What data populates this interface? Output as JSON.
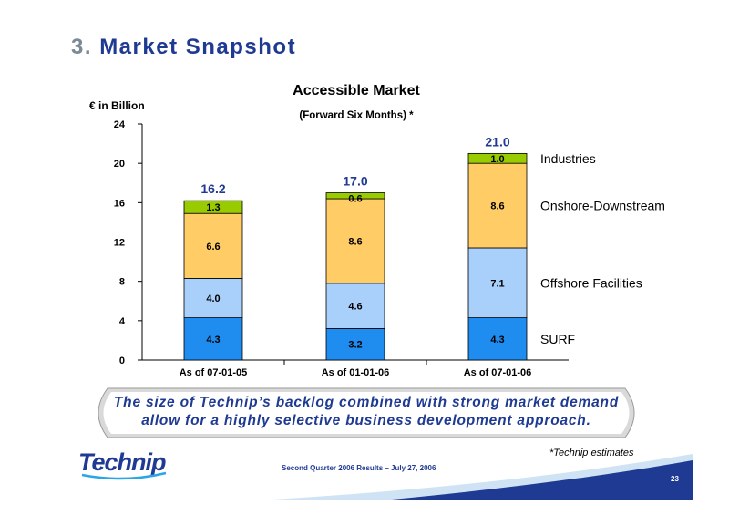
{
  "page": {
    "title_number": "3.",
    "title_text": "Market Snapshot",
    "callout_line1": "The size of Technip’s backlog combined with strong market demand",
    "callout_line2": "allow for a highly selective business development approach.",
    "footnote": "*Technip estimates",
    "footer": "Second Quarter 2006 Results – July 27, 2006",
    "page_number": "23",
    "logo_text": "Technip"
  },
  "colors": {
    "SURF": "#1f8df0",
    "Offshore Facilities": "#a9d0fa",
    "Onshore-Downstream": "#ffcc66",
    "Industries": "#99cc00",
    "title": "#1f3a93",
    "total_label": "#1f3a93"
  },
  "chart_data": {
    "type": "bar",
    "stacked": true,
    "title": "Accessible Market",
    "subtitle": "(Forward Six Months) *",
    "ylabel": "€ in Billion",
    "xlabel": "",
    "ylim": [
      0,
      24
    ],
    "yticks": [
      0,
      4,
      8,
      12,
      16,
      20,
      24
    ],
    "grid": false,
    "legend": "right",
    "categories": [
      "As of 07-01-05",
      "As of 01-01-06",
      "As of 07-01-06"
    ],
    "series": [
      {
        "name": "SURF",
        "values": [
          4.3,
          3.2,
          4.3
        ]
      },
      {
        "name": "Offshore Facilities",
        "values": [
          4.0,
          4.6,
          7.1
        ]
      },
      {
        "name": "Onshore-Downstream",
        "values": [
          6.6,
          8.6,
          8.6
        ]
      },
      {
        "name": "Industries",
        "values": [
          1.3,
          0.6,
          1.0
        ]
      }
    ],
    "totals": [
      "16.2",
      "17.0",
      "21.0"
    ]
  }
}
